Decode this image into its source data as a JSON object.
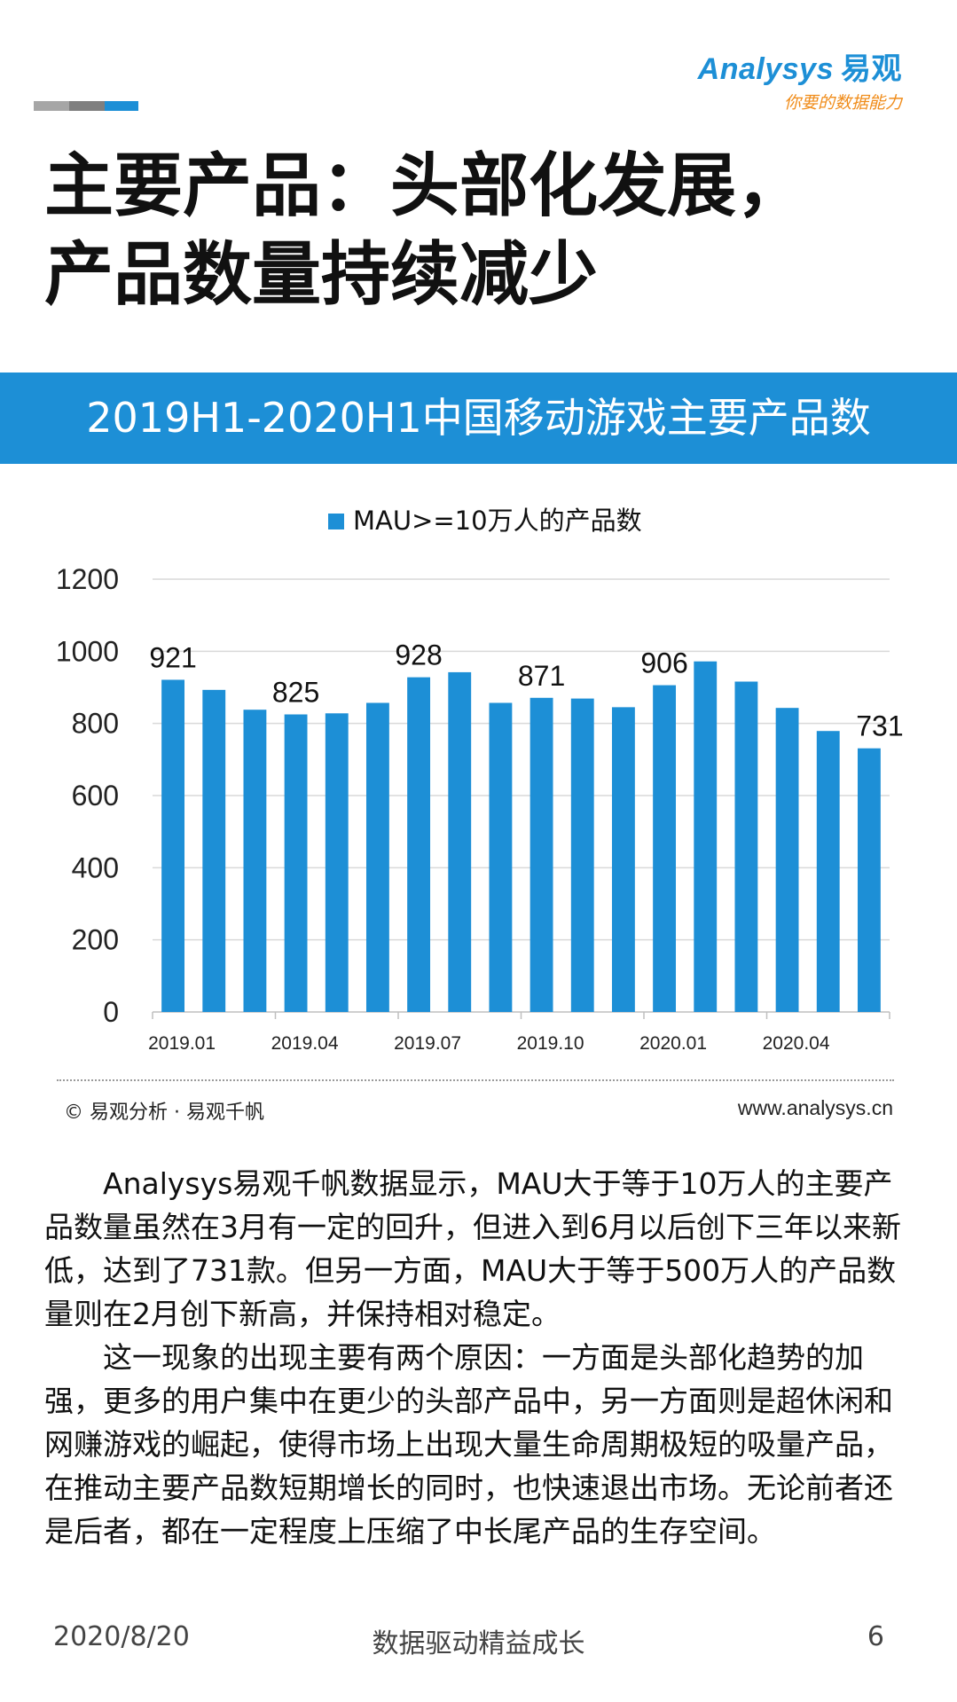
{
  "header": {
    "logo_main": "Analysys",
    "logo_cn": "易观",
    "logo_tagline": "你要的数据能力",
    "title_line1": "主要产品：头部化发展，",
    "title_line2": "产品数量持续减少"
  },
  "banner_title": "2019H1-2020H1中国移动游戏主要产品数",
  "colors": {
    "accent": "#1d8fd6",
    "tagline": "#f08c1a",
    "grid": "#d9d9d9"
  },
  "chart_data": {
    "type": "bar",
    "title": "",
    "legend_position": "top-center",
    "grid": true,
    "series": [
      {
        "name": "MAU>=10万人的产品数",
        "values": [
          921,
          893,
          838,
          825,
          828,
          857,
          928,
          942,
          857,
          871,
          869,
          845,
          906,
          972,
          916,
          843,
          779,
          731
        ]
      }
    ],
    "categories": [
      "2019.01",
      "2019.02",
      "2019.03",
      "2019.04",
      "2019.05",
      "2019.06",
      "2019.07",
      "2019.08",
      "2019.09",
      "2019.10",
      "2019.11",
      "2019.12",
      "2020.01",
      "2020.02",
      "2020.03",
      "2020.04",
      "2020.05",
      "2020.06"
    ],
    "x_tick_labels": [
      "2019.01",
      "2019.04",
      "2019.07",
      "2019.10",
      "2020.01",
      "2020.04"
    ],
    "data_labels": {
      "0": "921",
      "3": "825",
      "6": "928",
      "9": "871",
      "12": "906",
      "17": "731"
    },
    "yticks": [
      "0",
      "200",
      "400",
      "600",
      "800",
      "1000",
      "1200"
    ],
    "ylim": [
      0,
      1200
    ],
    "xlabel": "",
    "ylabel": ""
  },
  "source": "© 易观分析 · 易观千帆",
  "website": "www.analysys.cn",
  "body": {
    "p1": "Analysys易观千帆数据显示，MAU大于等于10万人的主要产品数量虽然在3月有一定的回升，但进入到6月以后创下三年以来新低，达到了731款。但另一方面，MAU大于等于500万人的产品数量则在2月创下新高，并保持相对稳定。",
    "p2": "这一现象的出现主要有两个原因：一方面是头部化趋势的加强，更多的用户集中在更少的头部产品中，另一方面则是超休闲和网赚游戏的崛起，使得市场上出现大量生命周期极短的吸量产品，在推动主要产品数短期增长的同时，也快速退出市场。无论前者还是后者，都在一定程度上压缩了中长尾产品的生存空间。"
  },
  "footer": {
    "date": "2020/8/20",
    "slogan": "数据驱动精益成长",
    "page": "6"
  }
}
